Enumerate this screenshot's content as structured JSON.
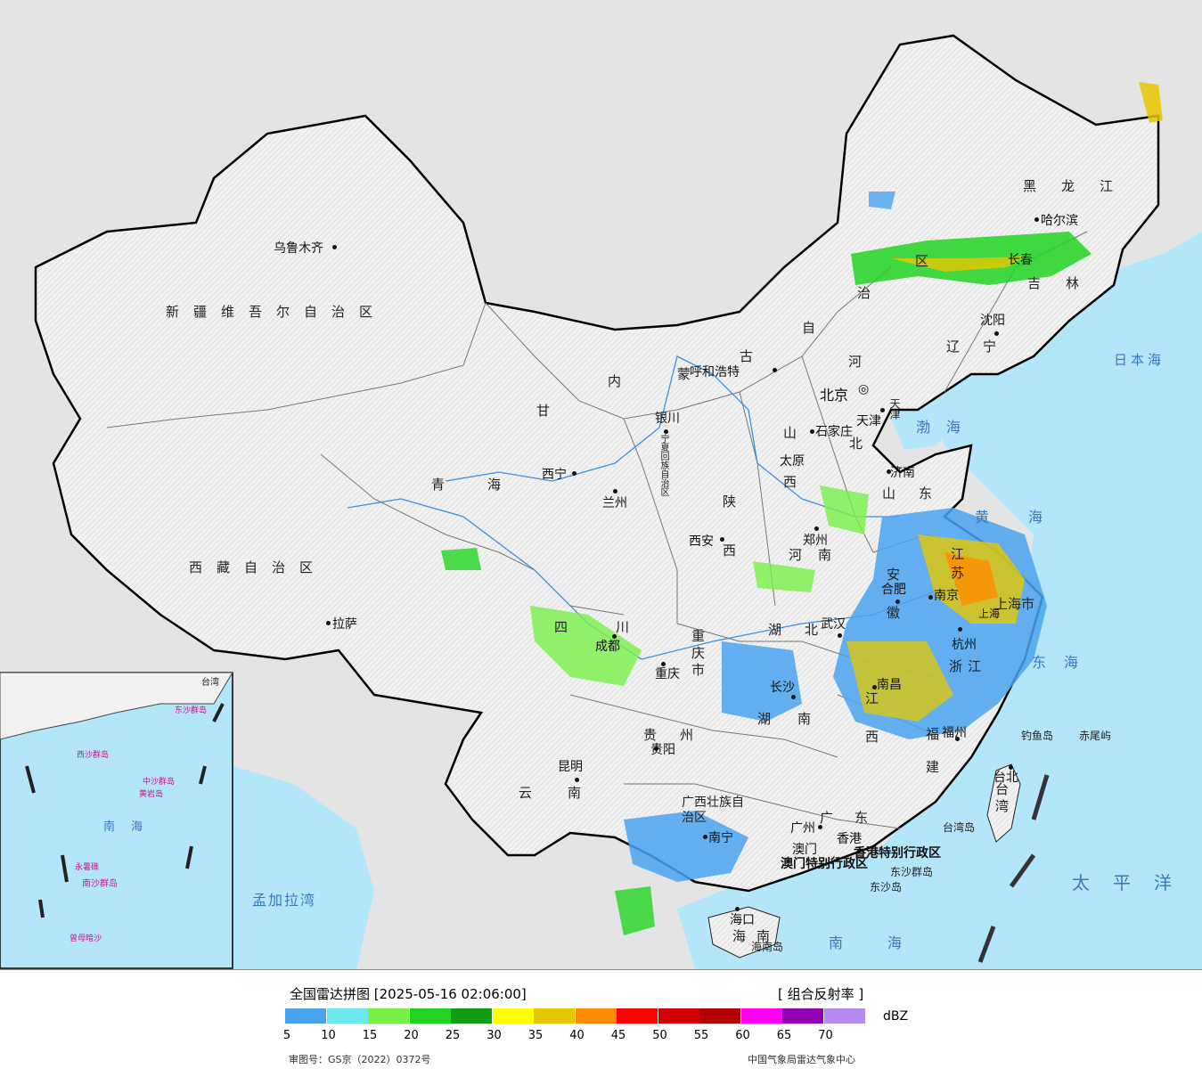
{
  "title": "全国雷达拼图 [2025-05-16 02:06:00]",
  "product": "[ 组合反射率 ]",
  "unit": "dBZ",
  "legend": {
    "ticks": [
      "5",
      "10",
      "15",
      "20",
      "25",
      "30",
      "35",
      "40",
      "45",
      "50",
      "55",
      "60",
      "65",
      "70"
    ],
    "colors": [
      "#4aa3f0",
      "#6ee8ee",
      "#78f04a",
      "#22d422",
      "#0f9e0f",
      "#ffff00",
      "#e6c800",
      "#ff8c00",
      "#ff0000",
      "#d20000",
      "#b40000",
      "#ff00f0",
      "#9600b4",
      "#b48cf0"
    ]
  },
  "footer": {
    "approval": "审图号：GS京（2022）0372号",
    "source": "中国气象局雷达气象中心"
  },
  "provinces": {
    "xinjiang": "新疆维吾尔自治区",
    "tibet": "西藏自治区",
    "qinghai": "青海",
    "gansu": "甘",
    "sichuan": "四川",
    "yunnan": "云南",
    "guizhou": "贵州",
    "guangxi": "广西壮族自治区",
    "guangdong": "广东",
    "hainan": "海南",
    "heilongjiang": "黑龙江",
    "jilin": "吉林",
    "liaoning": "辽宁",
    "shandong": "山东",
    "jiangsu": "江苏",
    "zhejiang": "浙江",
    "anhui": "安徽",
    "henan": "河南",
    "hubei": "湖北",
    "hunan": "湖南",
    "jiangxi": "江西",
    "fujian": "福建",
    "taiwan": "台湾",
    "shanxi": "山西",
    "shaanxi": "陕西",
    "chongqing": "重庆市",
    "shanghai": "上海市",
    "nei1": "内",
    "nei2": "蒙",
    "nei3": "古",
    "nei4": "自",
    "nei5": "治",
    "nei6": "区",
    "hebei1": "河",
    "hebei2": "北",
    "tianjin": "天津",
    "ningxia": "宁夏回族自治区",
    "hongkong": "香港特别行政区",
    "macau": "澳门特别行政区"
  },
  "cities": {
    "urumqi": "乌鲁木齐",
    "lhasa": "拉萨",
    "xining": "西宁",
    "lanzhou": "兰州",
    "yinchuan": "银川",
    "hohhot": "呼和浩特",
    "beijing": "北京",
    "tianjin_c": "天津",
    "shijiazhuang": "石家庄",
    "taiyuan": "太原",
    "jinan": "济南",
    "zhengzhou": "郑州",
    "xian": "西安",
    "chengdu": "成都",
    "chongqing_c": "重庆",
    "guiyang": "贵阳",
    "kunming": "昆明",
    "nanning": "南宁",
    "guangzhou": "广州",
    "hongkong_c": "香港",
    "macau_c": "澳门",
    "haikou": "海口",
    "changsha": "长沙",
    "wuhan": "武汉",
    "nanchang": "南昌",
    "hefei": "合肥",
    "nanjing": "南京",
    "hangzhou": "杭州",
    "fuzhou": "福州",
    "taibei": "台北",
    "harbin": "哈尔滨",
    "changchun": "长春",
    "shenyang": "沈阳",
    "shanghai_c": "上海"
  },
  "seas": {
    "japan": "日本海",
    "bohai": "渤海",
    "yellow": "黄海",
    "east": "东海",
    "pacific": "太平洋",
    "south": "南海",
    "bengal": "孟加拉湾"
  },
  "islands": {
    "diaoyu": "钓鱼岛",
    "chiwei": "赤尾屿",
    "taiwan_isl": "台湾岛",
    "dongsha_q": "东沙群岛",
    "dongsha": "东沙岛",
    "hainan_isl": "海南岛"
  },
  "inset": {
    "xisha": "西沙群岛",
    "zhongsha": "中沙群岛",
    "huangyan": "黄岩岛",
    "nansha": "南沙群岛",
    "yongshu": "永暑礁",
    "zengmu": "曾母暗沙",
    "south_sea": "南海",
    "dongsha_q": "东沙群岛",
    "taiwan": "台湾"
  }
}
